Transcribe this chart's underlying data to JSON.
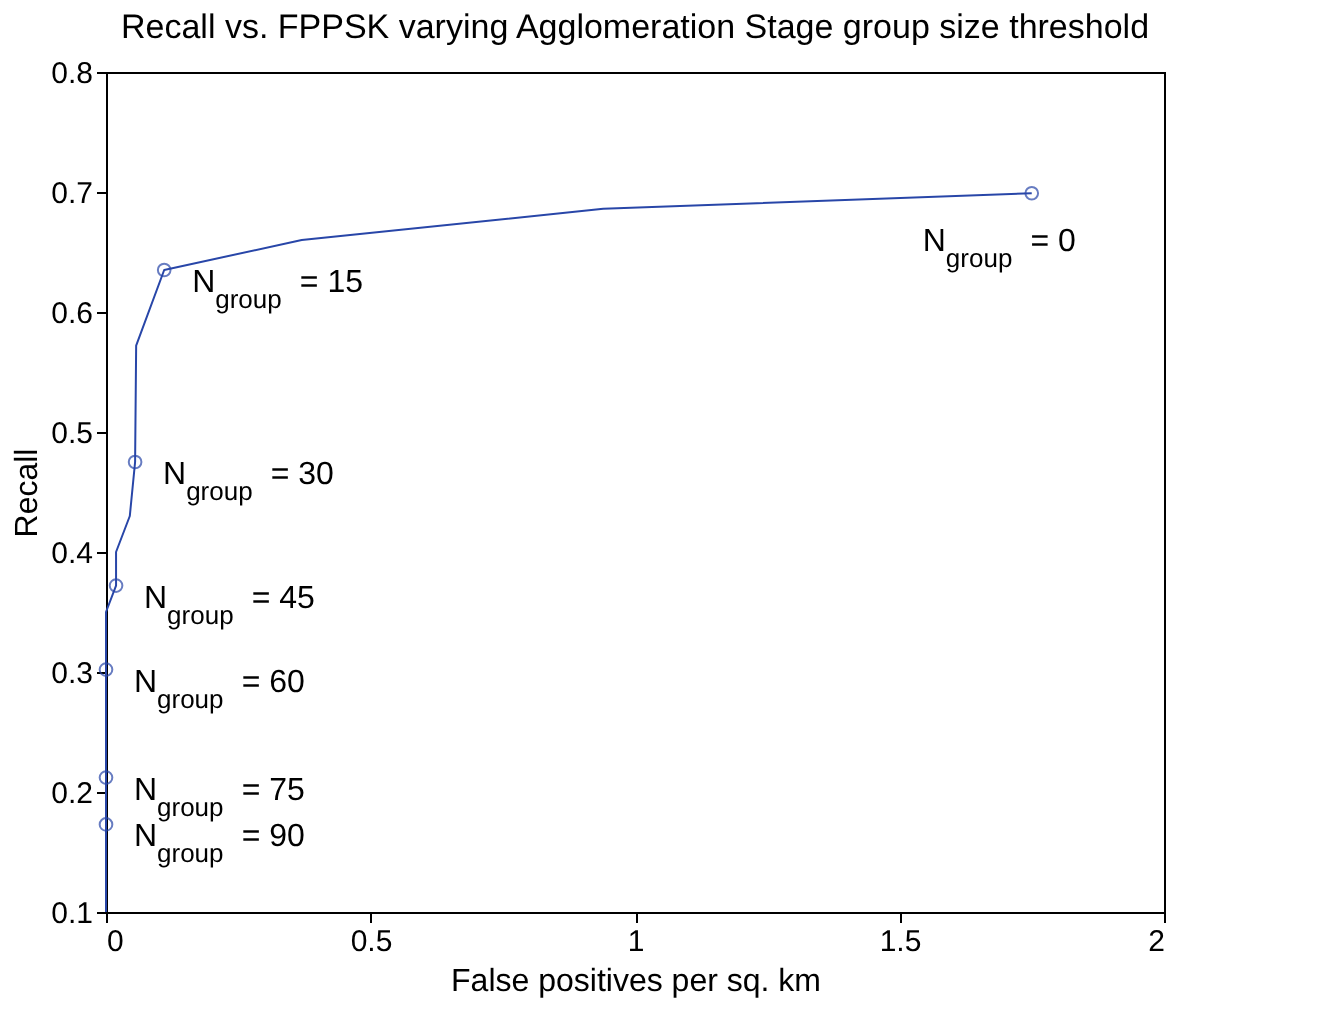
{
  "chart_data": {
    "type": "line",
    "title": "Recall vs. FPPSK varying Agglomeration Stage group size threshold",
    "xlabel": "False positives per sq. km",
    "ylabel": "Recall",
    "xlim": [
      0,
      2
    ],
    "xticks": [
      0,
      0.5,
      1,
      1.5,
      2
    ],
    "ylim": [
      0.1,
      0.8
    ],
    "yticks": [
      0.1,
      0.2,
      0.3,
      0.4,
      0.5,
      0.6,
      0.7,
      0.8
    ],
    "grid": false,
    "series": [
      {
        "color": "#2846a8",
        "marker": "none",
        "x": [
          0,
          0,
          0,
          0,
          0,
          0.019,
          0.019,
          0.045,
          0.055,
          0.057,
          0.11,
          0.37,
          0.94,
          1.75
        ],
        "values": [
          0.1,
          0.173,
          0.212,
          0.302,
          0.35,
          0.372,
          0.4,
          0.43,
          0.475,
          0.572,
          0.635,
          0.66,
          0.686,
          0.699
        ]
      },
      {
        "type": "scatter",
        "color": "#2846a8",
        "marker": "circle",
        "x": [
          1.75,
          0.11,
          0.055,
          0.019,
          0,
          0,
          0
        ],
        "values": [
          0.699,
          0.635,
          0.475,
          0.372,
          0.302,
          0.212,
          0.173
        ]
      }
    ],
    "annotations": [
      {
        "text": "N$_{group}$ = 0",
        "x": 1.75,
        "y": 0.699
      },
      {
        "text": "N$_{group}$ = 15",
        "x": 0.11,
        "y": 0.635
      },
      {
        "text": "N$_{group}$ = 30",
        "x": 0.055,
        "y": 0.475
      },
      {
        "text": "N$_{group}$ = 45",
        "x": 0.019,
        "y": 0.372
      },
      {
        "text": "N$_{group}$ = 60",
        "x": 0,
        "y": 0.302
      },
      {
        "text": "N$_{group}$ = 75",
        "x": 0,
        "y": 0.212
      },
      {
        "text": "N$_{group}$ = 90",
        "x": 0,
        "y": 0.173
      }
    ]
  }
}
